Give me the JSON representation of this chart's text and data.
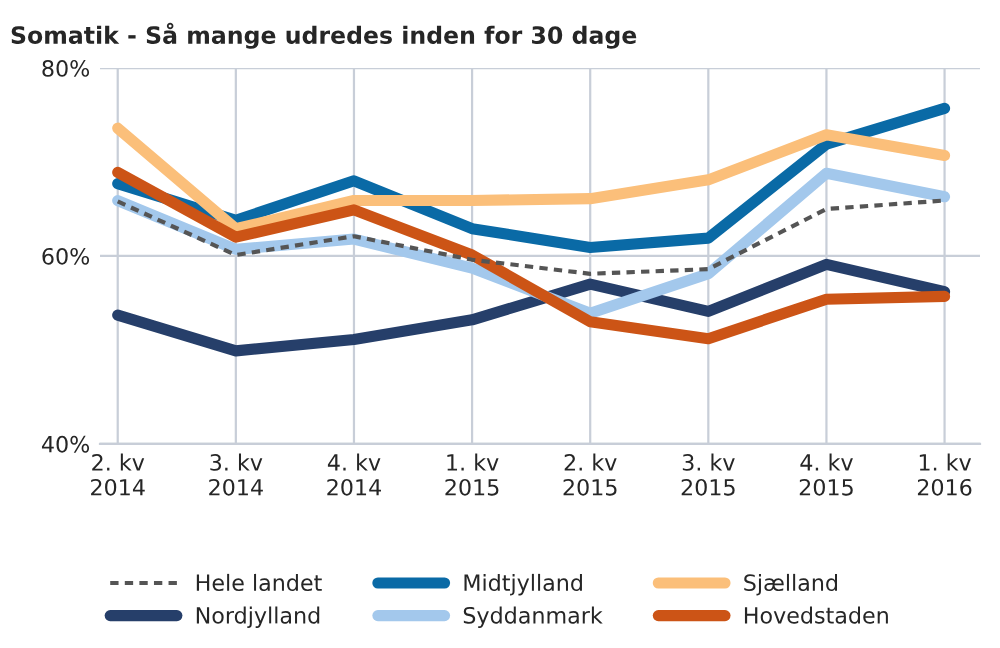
{
  "chart_data": {
    "type": "line",
    "title": "Somatik - Så mange udredes inden for 30 dage",
    "categories": [
      "2. kv\n2014",
      "3. kv\n2014",
      "4. kv\n2014",
      "1. kv\n2015",
      "2. kv\n2015",
      "3. kv\n2015",
      "4. kv\n2015",
      "1. kv\n2016"
    ],
    "series": [
      {
        "name": "Hele landet",
        "color": "#555555",
        "line_style": "dashed",
        "values": [
          65.8,
          60.1,
          62.1,
          59.6,
          58.1,
          58.6,
          65.0,
          65.9
        ]
      },
      {
        "name": "Nordjylland",
        "color": "#263f6a",
        "values": [
          53.7,
          49.9,
          51.1,
          53.2,
          57.0,
          54.1,
          59.1,
          56.2
        ]
      },
      {
        "name": "Midtjylland",
        "color": "#0a6aa6",
        "values": [
          67.7,
          63.8,
          68.0,
          62.9,
          60.9,
          61.9,
          71.9,
          75.7
        ]
      },
      {
        "name": "Syddanmark",
        "color": "#a3c8ec",
        "values": [
          65.9,
          60.7,
          61.8,
          58.7,
          53.9,
          58.1,
          68.8,
          66.3
        ]
      },
      {
        "name": "Sjælland",
        "color": "#fbbf7a",
        "values": [
          73.6,
          62.9,
          65.9,
          65.9,
          66.1,
          68.1,
          72.9,
          70.7
        ]
      },
      {
        "name": "Hovedstaden",
        "color": "#cc5416",
        "values": [
          68.9,
          62.0,
          64.9,
          60.1,
          53.0,
          51.2,
          55.4,
          55.7
        ]
      }
    ],
    "ylim": [
      40,
      80
    ],
    "yticks": [
      {
        "value": 40,
        "label": "40%"
      },
      {
        "value": 60,
        "label": "60%"
      },
      {
        "value": 80,
        "label": "80%"
      }
    ],
    "grid": true,
    "legend": "bottom",
    "marker": "none",
    "line_style": "solid"
  }
}
